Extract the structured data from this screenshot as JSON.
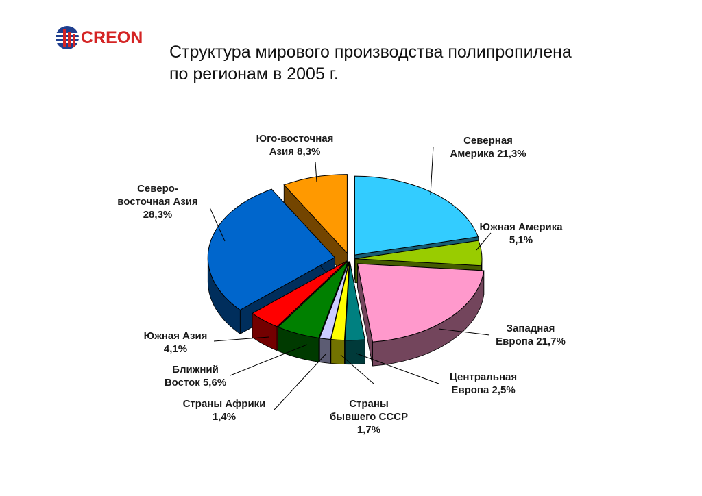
{
  "logo": {
    "text": "CREON"
  },
  "title": {
    "line1": "Структура мирового производства полипропилена",
    "line2": "по регионам в 2005 г."
  },
  "chart_data": {
    "type": "pie",
    "style": "3d-exploded",
    "title": "Структура мирового производства полипропилена по регионам в 2005 г.",
    "unit": "%",
    "slices": [
      {
        "id": "north-america",
        "label_lines": [
          "Северная",
          "Америка 21,3%"
        ],
        "name": "Северная Америка",
        "value": 21.3,
        "color": "#33ccff"
      },
      {
        "id": "south-america",
        "label_lines": [
          "Южная Америка",
          "5,1%"
        ],
        "name": "Южная Америка",
        "value": 5.1,
        "color": "#99cc00"
      },
      {
        "id": "western-europe",
        "label_lines": [
          "Западная",
          "Европа 21,7%"
        ],
        "name": "Западная Европа",
        "value": 21.7,
        "color": "#ff99cc"
      },
      {
        "id": "central-europe",
        "label_lines": [
          "Центральная",
          "Европа 2,5%"
        ],
        "name": "Центральная Европа",
        "value": 2.5,
        "color": "#008080"
      },
      {
        "id": "former-ussr",
        "label_lines": [
          "Страны",
          "бывшего СССР",
          "1,7%"
        ],
        "name": "Страны бывшего СССР",
        "value": 1.7,
        "color": "#ffff00"
      },
      {
        "id": "africa",
        "label_lines": [
          "Страны Африки",
          "1,4%"
        ],
        "name": "Страны Африки",
        "value": 1.4,
        "color": "#ccccff"
      },
      {
        "id": "middle-east",
        "label_lines": [
          "Ближний",
          "Восток 5,6%"
        ],
        "name": "Ближний Восток",
        "value": 5.6,
        "color": "#008000"
      },
      {
        "id": "south-asia",
        "label_lines": [
          "Южная Азия",
          "4,1%"
        ],
        "name": "Южная Азия",
        "value": 4.1,
        "color": "#ff0000"
      },
      {
        "id": "northeast-asia",
        "label_lines": [
          "Северо-",
          "восточная Азия",
          "28,3%"
        ],
        "name": "Северо-восточная Азия",
        "value": 28.3,
        "color": "#0066cc"
      },
      {
        "id": "southeast-asia",
        "label_lines": [
          "Юго-восточная",
          "Азия 8,3%"
        ],
        "name": "Юго-восточная Азия",
        "value": 8.3,
        "color": "#ff9900"
      }
    ]
  }
}
